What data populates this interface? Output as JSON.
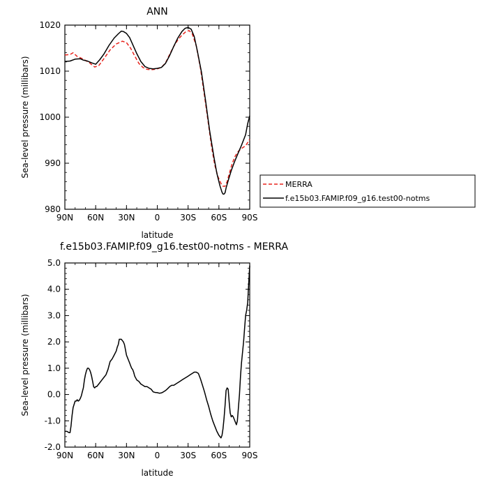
{
  "chart_data": [
    {
      "type": "line",
      "title": "ANN",
      "xlabel": "latitude",
      "ylabel": "Sea-level pressure (millibars)",
      "xlim": [
        90,
        -90
      ],
      "ylim": [
        980,
        1020
      ],
      "x_ticks": [
        {
          "value": 90,
          "label": "90N"
        },
        {
          "value": 60,
          "label": "60N"
        },
        {
          "value": 30,
          "label": "30N"
        },
        {
          "value": 0,
          "label": "0"
        },
        {
          "value": -30,
          "label": "30S"
        },
        {
          "value": -60,
          "label": "60S"
        },
        {
          "value": -90,
          "label": "90S"
        }
      ],
      "y_ticks": [
        {
          "value": 980,
          "label": "980"
        },
        {
          "value": 990,
          "label": "990"
        },
        {
          "value": 1000,
          "label": "1000"
        },
        {
          "value": 1010,
          "label": "1010"
        },
        {
          "value": 1020,
          "label": "1020"
        }
      ],
      "grid": false,
      "legend": "right",
      "series": [
        {
          "name": "MERRA",
          "color": "#e8231c",
          "dash": "dashed",
          "x": [
            90,
            85,
            82,
            78,
            72,
            66,
            61,
            57,
            52,
            46,
            40,
            34,
            30,
            26,
            22,
            18,
            14,
            10,
            6,
            2,
            0,
            -4,
            -8,
            -12,
            -16,
            -20,
            -24,
            -28,
            -31,
            -34,
            -38,
            -42,
            -46,
            -50,
            -53,
            -56,
            -59,
            -62,
            -64,
            -66,
            -68,
            -70,
            -73,
            -76,
            -79,
            -82,
            -86,
            -88,
            -90
          ],
          "y": [
            1013.5,
            1013.6,
            1014.0,
            1013.2,
            1012.6,
            1011.8,
            1010.9,
            1011.2,
            1012.7,
            1014.6,
            1015.9,
            1016.5,
            1016.2,
            1015.0,
            1013.3,
            1011.7,
            1010.8,
            1010.4,
            1010.3,
            1010.4,
            1010.5,
            1010.8,
            1011.8,
            1013.6,
            1015.4,
            1016.8,
            1017.8,
            1018.6,
            1018.8,
            1018.1,
            1015.5,
            1010.7,
            1004.6,
            998.2,
            993.4,
            989.6,
            987.1,
            985.6,
            985.0,
            985.0,
            986.0,
            987.7,
            990.0,
            991.6,
            992.6,
            993.2,
            993.8,
            994.5,
            995.2
          ]
        },
        {
          "name": "f.e15b03.FAMIP.f09_g16.test00-notms",
          "color": "#000000",
          "dash": "solid",
          "x": [
            90,
            85,
            80,
            75,
            72,
            68,
            64,
            60,
            56,
            52,
            47,
            42,
            38,
            35,
            33,
            30,
            27,
            24,
            20,
            16,
            12,
            8,
            4,
            0,
            -4,
            -8,
            -12,
            -16,
            -20,
            -24,
            -27,
            -30,
            -33,
            -36,
            -39,
            -43,
            -47,
            -51,
            -55,
            -58,
            -61,
            -63,
            -64,
            -65,
            -66,
            -67,
            -69,
            -72,
            -75,
            -78,
            -82,
            -86,
            -88,
            -90
          ],
          "y": [
            1012.1,
            1012.2,
            1012.6,
            1012.7,
            1012.4,
            1012.2,
            1011.8,
            1011.5,
            1012.5,
            1013.7,
            1015.6,
            1017.2,
            1018.1,
            1018.7,
            1018.6,
            1018.2,
            1017.3,
            1015.8,
            1013.8,
            1012.1,
            1011.0,
            1010.6,
            1010.5,
            1010.6,
            1010.8,
            1011.7,
            1013.4,
            1015.4,
            1017.2,
            1018.6,
            1019.3,
            1019.5,
            1019.1,
            1017.5,
            1014.4,
            1009.8,
            1003.6,
            997.0,
            991.5,
            987.8,
            985.1,
            983.7,
            983.3,
            983.3,
            983.6,
            984.6,
            986.2,
            988.4,
            990.2,
            991.8,
            993.9,
            996.2,
            998.6,
            1000.3
          ]
        }
      ]
    },
    {
      "type": "line",
      "title": "f.e15b03.FAMIP.f09_g16.test00-notms - MERRA",
      "xlabel": "latitude",
      "ylabel": "Sea-level pressure (millibars)",
      "xlim": [
        90,
        -90
      ],
      "ylim": [
        -2.0,
        5.0
      ],
      "x_ticks": [
        {
          "value": 90,
          "label": "90N"
        },
        {
          "value": 60,
          "label": "60N"
        },
        {
          "value": 30,
          "label": "30N"
        },
        {
          "value": 0,
          "label": "0"
        },
        {
          "value": -30,
          "label": "30S"
        },
        {
          "value": -60,
          "label": "60S"
        },
        {
          "value": -90,
          "label": "90S"
        }
      ],
      "y_ticks": [
        {
          "value": -2.0,
          "label": "-2.0"
        },
        {
          "value": -1.0,
          "label": "-1.0"
        },
        {
          "value": 0.0,
          "label": "0.0"
        },
        {
          "value": 1.0,
          "label": "1.0"
        },
        {
          "value": 2.0,
          "label": "2.0"
        },
        {
          "value": 3.0,
          "label": "3.0"
        },
        {
          "value": 4.0,
          "label": "4.0"
        },
        {
          "value": 5.0,
          "label": "5.0"
        }
      ],
      "grid": false,
      "series": [
        {
          "name": "",
          "color": "#000000",
          "dash": "solid",
          "x": [
            90,
            88,
            86,
            85,
            84,
            83,
            82,
            80,
            79,
            78,
            77,
            76,
            75,
            74,
            73,
            72,
            71,
            70,
            69,
            68,
            67,
            66,
            65,
            64,
            63,
            62,
            61,
            60,
            59,
            58,
            56,
            54,
            52,
            50,
            48,
            46,
            44,
            42,
            40,
            39,
            38,
            37,
            36,
            35,
            34,
            33,
            32,
            31,
            30,
            29,
            28,
            27,
            26,
            25,
            24,
            23,
            22,
            20,
            18,
            16,
            14,
            12,
            10,
            8,
            6,
            4,
            2,
            0,
            -2,
            -4,
            -6,
            -8,
            -10,
            -12,
            -14,
            -16,
            -18,
            -20,
            -22,
            -24,
            -26,
            -28,
            -30,
            -32,
            -34,
            -36,
            -38,
            -40,
            -42,
            -44,
            -46,
            -48,
            -50,
            -52,
            -54,
            -56,
            -58,
            -60,
            -61,
            -62,
            -63,
            -64,
            -65,
            -66,
            -67,
            -68,
            -69,
            -70,
            -71,
            -72,
            -73,
            -74,
            -75,
            -76,
            -77,
            -78,
            -79,
            -80,
            -81,
            -82,
            -83,
            -84,
            -85,
            -86,
            -87,
            -88,
            -89,
            -90
          ],
          "y": [
            -1.4,
            -1.4,
            -1.45,
            -1.45,
            -1.2,
            -0.8,
            -0.5,
            -0.25,
            -0.25,
            -0.2,
            -0.25,
            -0.22,
            -0.15,
            -0.05,
            0.1,
            0.25,
            0.55,
            0.75,
            0.9,
            1.0,
            1.0,
            0.95,
            0.85,
            0.7,
            0.5,
            0.3,
            0.25,
            0.3,
            0.3,
            0.35,
            0.45,
            0.55,
            0.65,
            0.75,
            0.95,
            1.25,
            1.35,
            1.5,
            1.65,
            1.8,
            1.9,
            2.1,
            2.1,
            2.1,
            2.05,
            2.0,
            1.9,
            1.7,
            1.5,
            1.4,
            1.3,
            1.2,
            1.1,
            1.0,
            0.95,
            0.85,
            0.7,
            0.55,
            0.5,
            0.4,
            0.35,
            0.3,
            0.3,
            0.25,
            0.2,
            0.1,
            0.08,
            0.07,
            0.05,
            0.06,
            0.1,
            0.15,
            0.22,
            0.3,
            0.35,
            0.35,
            0.4,
            0.45,
            0.5,
            0.55,
            0.6,
            0.65,
            0.7,
            0.75,
            0.8,
            0.85,
            0.85,
            0.8,
            0.6,
            0.35,
            0.1,
            -0.2,
            -0.45,
            -0.75,
            -1.0,
            -1.2,
            -1.4,
            -1.55,
            -1.6,
            -1.65,
            -1.55,
            -1.3,
            -0.9,
            -0.4,
            0.15,
            0.25,
            0.2,
            -0.3,
            -0.7,
            -0.85,
            -0.8,
            -0.85,
            -0.95,
            -1.05,
            -1.15,
            -1.0,
            -0.5,
            0.0,
            0.7,
            1.2,
            1.6,
            2.0,
            2.5,
            3.0,
            3.2,
            3.5,
            4.2,
            4.9
          ]
        }
      ]
    }
  ]
}
